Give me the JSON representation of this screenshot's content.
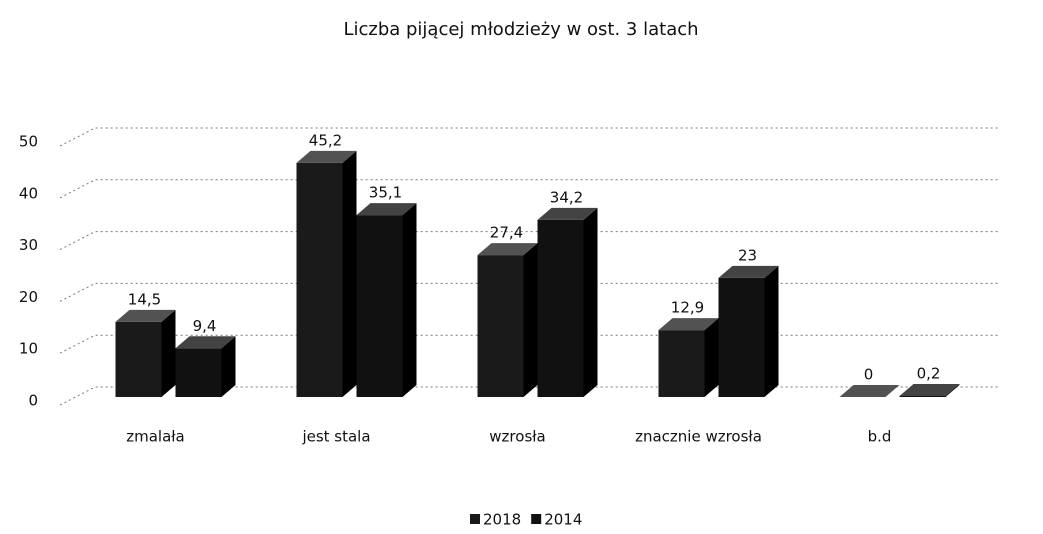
{
  "chart_data": {
    "type": "bar",
    "title": "Liczba pijącej młodzieży w ost. 3 latach",
    "categories": [
      "zmalała",
      "jest stala",
      "wzrosła",
      "znacznie wzrosła",
      "b.d"
    ],
    "series": [
      {
        "name": "2018",
        "color": "#1a1a1a",
        "values": [
          14.5,
          45.2,
          27.4,
          12.9,
          0
        ],
        "value_labels": [
          "14,5",
          "45,2",
          "27,4",
          "12,9",
          "0"
        ]
      },
      {
        "name": "2014",
        "color": "#111111",
        "values": [
          9.4,
          35.1,
          34.2,
          23,
          0.2
        ],
        "value_labels": [
          "9,4",
          "35,1",
          "34,2",
          "23",
          "0,2"
        ]
      }
    ],
    "ylim": [
      0,
      50
    ],
    "yticks": [
      0,
      10,
      20,
      30,
      40,
      50
    ],
    "grid": true,
    "legend": "bottom"
  }
}
